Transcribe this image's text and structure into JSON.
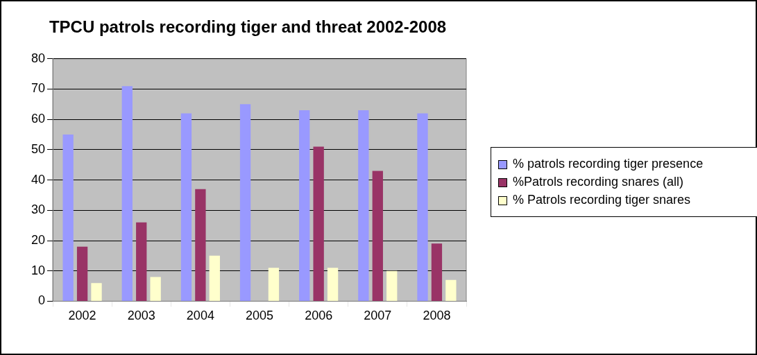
{
  "chart_data": {
    "type": "bar",
    "title": "TPCU patrols recording tiger and threat 2002-2008",
    "categories": [
      "2002",
      "2003",
      "2004",
      "2005",
      "2006",
      "2007",
      "2008"
    ],
    "series": [
      {
        "name": "% patrols recording tiger presence",
        "color": "#9999ff",
        "values": [
          55,
          71,
          62,
          65,
          63,
          63,
          62
        ]
      },
      {
        "name": "%Patrols recording snares (all)",
        "color": "#993366",
        "values": [
          18,
          26,
          37,
          0,
          51,
          43,
          19
        ]
      },
      {
        "name": "% Patrols recording tiger snares",
        "color": "#ffffcc",
        "values": [
          6,
          8,
          15,
          11,
          11,
          10,
          7
        ]
      }
    ],
    "ylim": [
      0,
      80
    ],
    "yticks": [
      0,
      10,
      20,
      30,
      40,
      50,
      60,
      70,
      80
    ],
    "grid": "y",
    "legend": "right"
  }
}
